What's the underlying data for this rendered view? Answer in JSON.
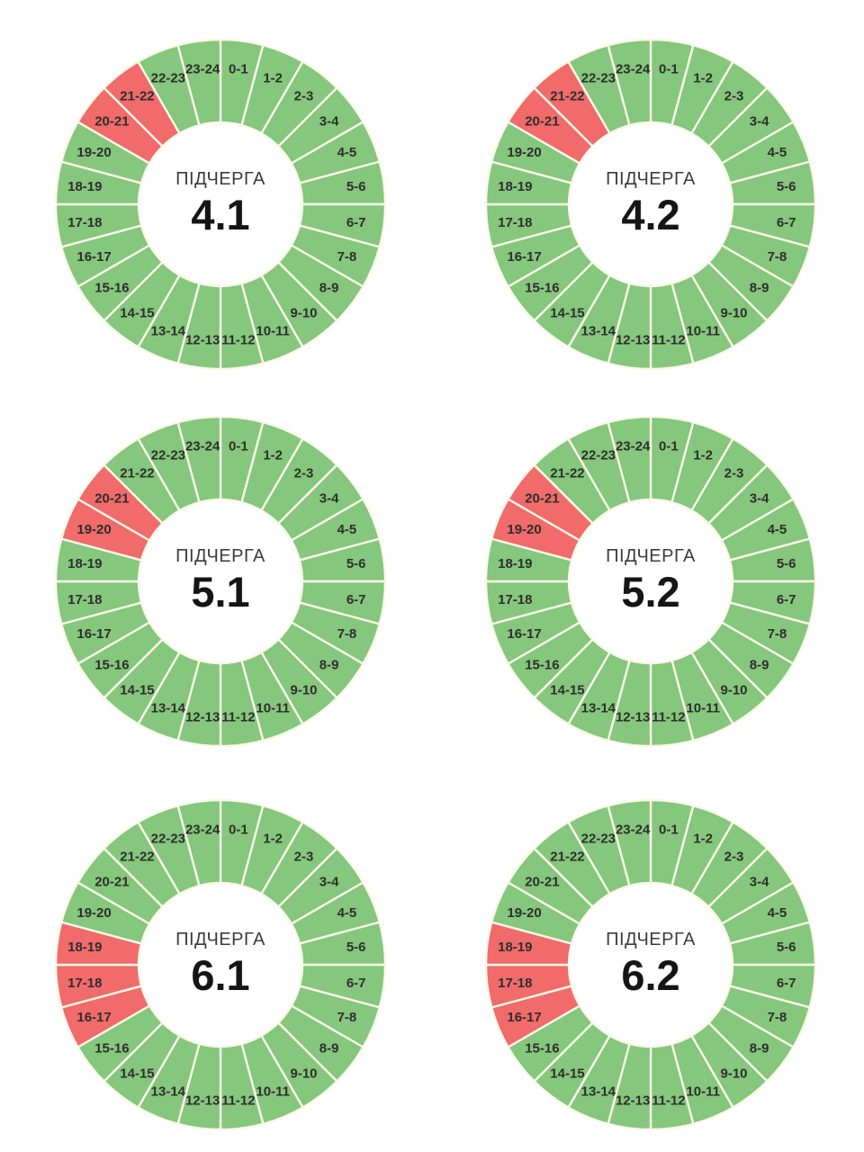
{
  "page": {
    "background": "#FFFFFF",
    "description_center_label": "ПІДЧЕРГА"
  },
  "colors": {
    "power_on": "#85C77C",
    "power_off": "#F16B6B",
    "slice_divider": "#FAF7E9",
    "slice_label": "#2E2E2E",
    "center_label": "#3C3C3C",
    "center_queue": "#151515"
  },
  "chart_layout": {
    "grid": "2 columns x 3 rows",
    "start_angle": "top",
    "direction": "clockwise",
    "slice_angle_deg": 15,
    "donut_hole_ratio": 0.5,
    "labels_position": "inside-ring",
    "legend": "none"
  },
  "chart_data": [
    {
      "type": "pie",
      "title": "ПІДЧЕРГА 4.1",
      "center_label": "ПІДЧЕРГА",
      "queue": "4.1",
      "categories": [
        "0-1",
        "1-2",
        "2-3",
        "3-4",
        "4-5",
        "5-6",
        "6-7",
        "7-8",
        "8-9",
        "9-10",
        "10-11",
        "11-12",
        "12-13",
        "13-14",
        "14-15",
        "15-16",
        "16-17",
        "17-18",
        "18-19",
        "19-20",
        "20-21",
        "21-22",
        "22-23",
        "23-24"
      ],
      "values": [
        1,
        1,
        1,
        1,
        1,
        1,
        1,
        1,
        1,
        1,
        1,
        1,
        1,
        1,
        1,
        1,
        1,
        1,
        1,
        1,
        1,
        1,
        1,
        1
      ],
      "statuses": [
        "on",
        "on",
        "on",
        "on",
        "on",
        "on",
        "on",
        "on",
        "on",
        "on",
        "on",
        "on",
        "on",
        "on",
        "on",
        "on",
        "on",
        "on",
        "on",
        "on",
        "off",
        "off",
        "on",
        "on"
      ]
    },
    {
      "type": "pie",
      "title": "ПІДЧЕРГА 4.2",
      "center_label": "ПІДЧЕРГА",
      "queue": "4.2",
      "categories": [
        "0-1",
        "1-2",
        "2-3",
        "3-4",
        "4-5",
        "5-6",
        "6-7",
        "7-8",
        "8-9",
        "9-10",
        "10-11",
        "11-12",
        "12-13",
        "13-14",
        "14-15",
        "15-16",
        "16-17",
        "17-18",
        "18-19",
        "19-20",
        "20-21",
        "21-22",
        "22-23",
        "23-24"
      ],
      "values": [
        1,
        1,
        1,
        1,
        1,
        1,
        1,
        1,
        1,
        1,
        1,
        1,
        1,
        1,
        1,
        1,
        1,
        1,
        1,
        1,
        1,
        1,
        1,
        1
      ],
      "statuses": [
        "on",
        "on",
        "on",
        "on",
        "on",
        "on",
        "on",
        "on",
        "on",
        "on",
        "on",
        "on",
        "on",
        "on",
        "on",
        "on",
        "on",
        "on",
        "on",
        "on",
        "off",
        "off",
        "on",
        "on"
      ]
    },
    {
      "type": "pie",
      "title": "ПІДЧЕРГА 5.1",
      "center_label": "ПІДЧЕРГА",
      "queue": "5.1",
      "categories": [
        "0-1",
        "1-2",
        "2-3",
        "3-4",
        "4-5",
        "5-6",
        "6-7",
        "7-8",
        "8-9",
        "9-10",
        "10-11",
        "11-12",
        "12-13",
        "13-14",
        "14-15",
        "15-16",
        "16-17",
        "17-18",
        "18-19",
        "19-20",
        "20-21",
        "21-22",
        "22-23",
        "23-24"
      ],
      "values": [
        1,
        1,
        1,
        1,
        1,
        1,
        1,
        1,
        1,
        1,
        1,
        1,
        1,
        1,
        1,
        1,
        1,
        1,
        1,
        1,
        1,
        1,
        1,
        1
      ],
      "statuses": [
        "on",
        "on",
        "on",
        "on",
        "on",
        "on",
        "on",
        "on",
        "on",
        "on",
        "on",
        "on",
        "on",
        "on",
        "on",
        "on",
        "on",
        "on",
        "on",
        "off",
        "off",
        "on",
        "on",
        "on"
      ]
    },
    {
      "type": "pie",
      "title": "ПІДЧЕРГА 5.2",
      "center_label": "ПІДЧЕРГА",
      "queue": "5.2",
      "categories": [
        "0-1",
        "1-2",
        "2-3",
        "3-4",
        "4-5",
        "5-6",
        "6-7",
        "7-8",
        "8-9",
        "9-10",
        "10-11",
        "11-12",
        "12-13",
        "13-14",
        "14-15",
        "15-16",
        "16-17",
        "17-18",
        "18-19",
        "19-20",
        "20-21",
        "21-22",
        "22-23",
        "23-24"
      ],
      "values": [
        1,
        1,
        1,
        1,
        1,
        1,
        1,
        1,
        1,
        1,
        1,
        1,
        1,
        1,
        1,
        1,
        1,
        1,
        1,
        1,
        1,
        1,
        1,
        1
      ],
      "statuses": [
        "on",
        "on",
        "on",
        "on",
        "on",
        "on",
        "on",
        "on",
        "on",
        "on",
        "on",
        "on",
        "on",
        "on",
        "on",
        "on",
        "on",
        "on",
        "on",
        "off",
        "off",
        "on",
        "on",
        "on"
      ]
    },
    {
      "type": "pie",
      "title": "ПІДЧЕРГА 6.1",
      "center_label": "ПІДЧЕРГА",
      "queue": "6.1",
      "categories": [
        "0-1",
        "1-2",
        "2-3",
        "3-4",
        "4-5",
        "5-6",
        "6-7",
        "7-8",
        "8-9",
        "9-10",
        "10-11",
        "11-12",
        "12-13",
        "13-14",
        "14-15",
        "15-16",
        "16-17",
        "17-18",
        "18-19",
        "19-20",
        "20-21",
        "21-22",
        "22-23",
        "23-24"
      ],
      "values": [
        1,
        1,
        1,
        1,
        1,
        1,
        1,
        1,
        1,
        1,
        1,
        1,
        1,
        1,
        1,
        1,
        1,
        1,
        1,
        1,
        1,
        1,
        1,
        1
      ],
      "statuses": [
        "on",
        "on",
        "on",
        "on",
        "on",
        "on",
        "on",
        "on",
        "on",
        "on",
        "on",
        "on",
        "on",
        "on",
        "on",
        "on",
        "off",
        "off",
        "off",
        "on",
        "on",
        "on",
        "on",
        "on"
      ]
    },
    {
      "type": "pie",
      "title": "ПІДЧЕРГА 6.2",
      "center_label": "ПІДЧЕРГА",
      "queue": "6.2",
      "categories": [
        "0-1",
        "1-2",
        "2-3",
        "3-4",
        "4-5",
        "5-6",
        "6-7",
        "7-8",
        "8-9",
        "9-10",
        "10-11",
        "11-12",
        "12-13",
        "13-14",
        "14-15",
        "15-16",
        "16-17",
        "17-18",
        "18-19",
        "19-20",
        "20-21",
        "21-22",
        "22-23",
        "23-24"
      ],
      "values": [
        1,
        1,
        1,
        1,
        1,
        1,
        1,
        1,
        1,
        1,
        1,
        1,
        1,
        1,
        1,
        1,
        1,
        1,
        1,
        1,
        1,
        1,
        1,
        1
      ],
      "statuses": [
        "on",
        "on",
        "on",
        "on",
        "on",
        "on",
        "on",
        "on",
        "on",
        "on",
        "on",
        "on",
        "on",
        "on",
        "on",
        "on",
        "off",
        "off",
        "off",
        "on",
        "on",
        "on",
        "on",
        "on"
      ]
    }
  ]
}
